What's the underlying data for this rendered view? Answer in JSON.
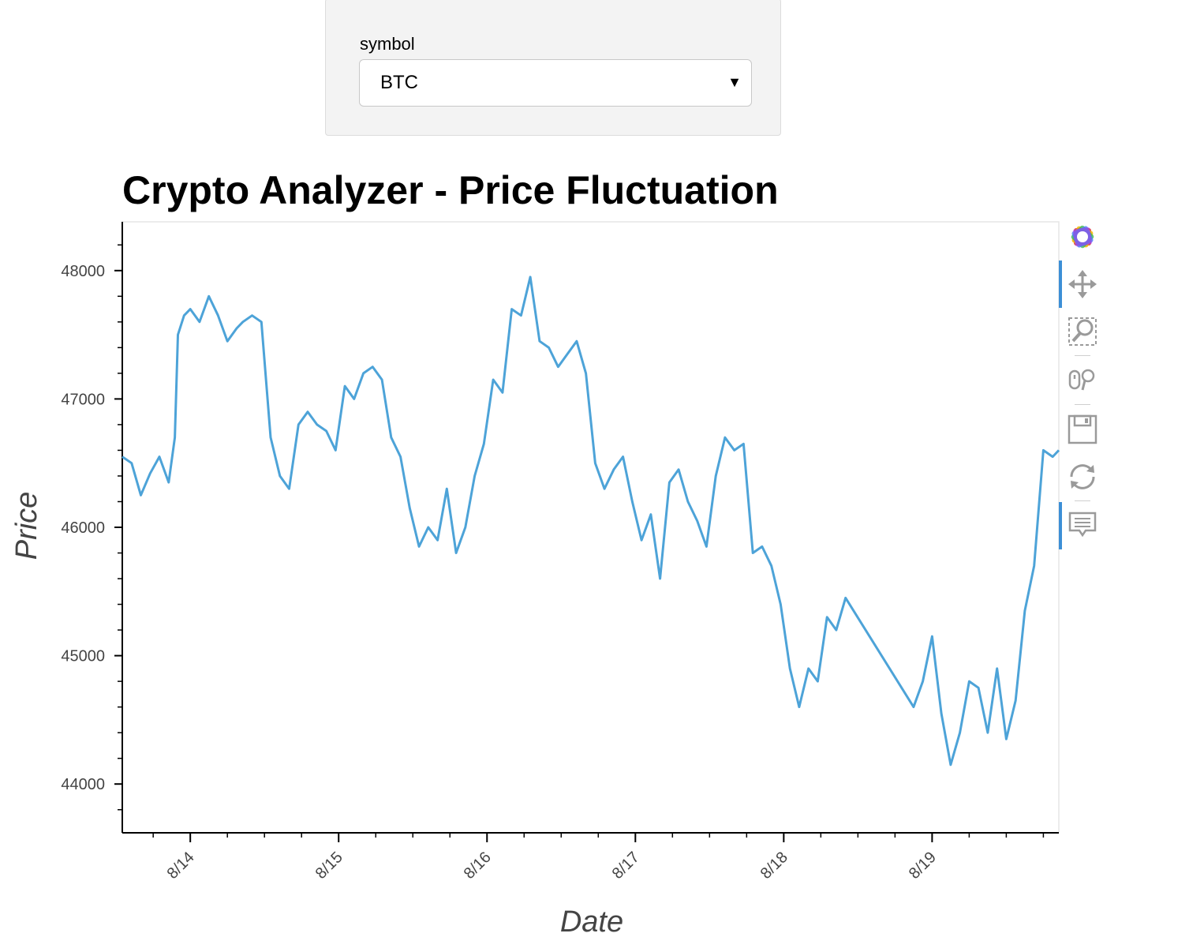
{
  "widget": {
    "label": "symbol",
    "selected": "BTC"
  },
  "toolbar": {
    "tools": [
      "bokeh-logo-icon",
      "pan-icon",
      "box-zoom-icon",
      "wheel-zoom-icon",
      "save-icon",
      "reset-icon",
      "hover-icon"
    ]
  },
  "chart_data": {
    "type": "line",
    "title": "Crypto Analyzer - Price Fluctuation",
    "xlabel": "Date",
    "ylabel": "Price",
    "x_ticks": [
      "8/14",
      "8/15",
      "8/16",
      "8/17",
      "8/18",
      "8/19"
    ],
    "y_ticks": [
      44000,
      45000,
      46000,
      47000,
      48000
    ],
    "ylim": [
      43620,
      48380
    ],
    "xlim": [
      "2021-08-13 13:00",
      "2021-08-19 20:30"
    ],
    "grid": false,
    "color": "#4da3d8",
    "series": [
      {
        "x": [
          "2021-08-13 13:00",
          "2021-08-13 14:30",
          "2021-08-13 16:00",
          "2021-08-13 17:30",
          "2021-08-13 19:00",
          "2021-08-13 20:30",
          "2021-08-13 21:30",
          "2021-08-13 22:00",
          "2021-08-13 23:00",
          "2021-08-14 00:00",
          "2021-08-14 01:30",
          "2021-08-14 03:00",
          "2021-08-14 04:30",
          "2021-08-14 06:00",
          "2021-08-14 07:30",
          "2021-08-14 08:30",
          "2021-08-14 10:00",
          "2021-08-14 11:30",
          "2021-08-14 13:00",
          "2021-08-14 14:30",
          "2021-08-14 16:00",
          "2021-08-14 17:30",
          "2021-08-14 19:00",
          "2021-08-14 20:30",
          "2021-08-14 22:00",
          "2021-08-14 23:30",
          "2021-08-15 01:00",
          "2021-08-15 02:30",
          "2021-08-15 04:00",
          "2021-08-15 05:30",
          "2021-08-15 07:00",
          "2021-08-15 08:30",
          "2021-08-15 10:00",
          "2021-08-15 11:30",
          "2021-08-15 13:00",
          "2021-08-15 14:30",
          "2021-08-15 16:00",
          "2021-08-15 17:30",
          "2021-08-15 19:00",
          "2021-08-15 20:30",
          "2021-08-15 22:00",
          "2021-08-15 23:30",
          "2021-08-16 01:00",
          "2021-08-16 02:30",
          "2021-08-16 04:00",
          "2021-08-16 05:30",
          "2021-08-16 07:00",
          "2021-08-16 08:30",
          "2021-08-16 10:00",
          "2021-08-16 11:30",
          "2021-08-16 13:00",
          "2021-08-16 14:30",
          "2021-08-16 16:00",
          "2021-08-16 17:30",
          "2021-08-16 19:00",
          "2021-08-16 20:30",
          "2021-08-16 22:00",
          "2021-08-16 23:30",
          "2021-08-17 01:00",
          "2021-08-17 02:30",
          "2021-08-17 04:00",
          "2021-08-17 05:30",
          "2021-08-17 07:00",
          "2021-08-17 08:30",
          "2021-08-17 10:00",
          "2021-08-17 11:30",
          "2021-08-17 13:00",
          "2021-08-17 14:30",
          "2021-08-17 16:00",
          "2021-08-17 17:30",
          "2021-08-17 19:00",
          "2021-08-17 20:30",
          "2021-08-17 22:00",
          "2021-08-17 23:30",
          "2021-08-18 01:00",
          "2021-08-18 02:30",
          "2021-08-18 04:00",
          "2021-08-18 05:30",
          "2021-08-18 07:00",
          "2021-08-18 08:30",
          "2021-08-18 10:00",
          "2021-08-18 21:00",
          "2021-08-18 22:30",
          "2021-08-19 00:00",
          "2021-08-19 01:30",
          "2021-08-19 03:00",
          "2021-08-19 04:30",
          "2021-08-19 06:00",
          "2021-08-19 07:30",
          "2021-08-19 09:00",
          "2021-08-19 10:30",
          "2021-08-19 12:00",
          "2021-08-19 13:30",
          "2021-08-19 15:00",
          "2021-08-19 16:30",
          "2021-08-19 18:00",
          "2021-08-19 19:30",
          "2021-08-19 20:30"
        ],
        "y": [
          46550,
          46500,
          46250,
          46420,
          46550,
          46350,
          46700,
          47500,
          47650,
          47700,
          47600,
          47800,
          47650,
          47450,
          47550,
          47600,
          47650,
          47600,
          46700,
          46400,
          46300,
          46800,
          46900,
          46800,
          46750,
          46600,
          47100,
          47000,
          47200,
          47250,
          47150,
          46700,
          46550,
          46150,
          45850,
          46000,
          45900,
          46300,
          45800,
          46000,
          46400,
          46650,
          47150,
          47050,
          47700,
          47650,
          47950,
          47450,
          47400,
          47250,
          47350,
          47450,
          47200,
          46500,
          46300,
          46450,
          46550,
          46200,
          45900,
          46100,
          45600,
          46350,
          46450,
          46200,
          46050,
          45850,
          46400,
          46700,
          46600,
          46650,
          45800,
          45850,
          45700,
          45400,
          44900,
          44600,
          44900,
          44800,
          45300,
          45200,
          45450,
          44600,
          44800,
          45150,
          44550,
          44150,
          44400,
          44800,
          44750,
          44400,
          44900,
          44350,
          44650,
          45350,
          45700,
          46600,
          46550,
          46600
        ]
      }
    ]
  }
}
